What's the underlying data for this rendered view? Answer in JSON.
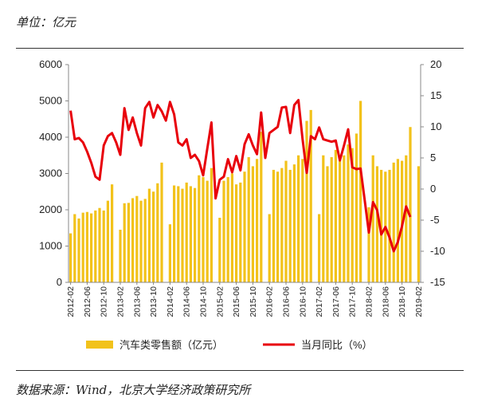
{
  "unit_label": "单位：亿元",
  "source_label": "数据来源：Wind，北京大学经济政策研究所",
  "colors": {
    "bar": "#f2c21b",
    "line": "#e8000b",
    "axis": "#888888",
    "text": "#222222"
  },
  "chart_data": {
    "type": "bar+line",
    "x_tick_labels": [
      "2012-02",
      "2012-06",
      "2012-10",
      "2013-02",
      "2013-06",
      "2013-10",
      "2014-02",
      "2014-06",
      "2014-10",
      "2015-02",
      "2015-06",
      "2015-10",
      "2016-02",
      "2016-06",
      "2016-10",
      "2017-02",
      "2017-06",
      "2017-10",
      "2018-02",
      "2018-06",
      "2018-10",
      "2019-02"
    ],
    "y_left": {
      "min": 0,
      "max": 6000,
      "ticks": [
        0,
        1000,
        2000,
        3000,
        4000,
        5000,
        6000
      ]
    },
    "y_right": {
      "min": -15,
      "max": 20,
      "ticks": [
        -15,
        -10,
        -5,
        0,
        5,
        10,
        15,
        20
      ]
    },
    "series": [
      {
        "name": "汽车类零售额（亿元）",
        "type": "bar",
        "axis": "left",
        "values": [
          1350,
          1880,
          1760,
          1920,
          1940,
          1900,
          1980,
          2050,
          1980,
          2250,
          2700,
          null,
          1450,
          2180,
          2190,
          2320,
          2380,
          2250,
          2300,
          2580,
          2500,
          2730,
          3300,
          null,
          1600,
          2670,
          2650,
          2580,
          2750,
          2650,
          2600,
          2950,
          2900,
          2800,
          3150,
          null,
          1780,
          2800,
          2900,
          3000,
          2700,
          2750,
          3050,
          3450,
          3200,
          3400,
          4150,
          null,
          1880,
          3100,
          3050,
          3150,
          3350,
          3100,
          3250,
          3500,
          3400,
          4450,
          4750,
          null,
          1880,
          3500,
          3200,
          3450,
          3650,
          3400,
          3500,
          3800,
          3700,
          4100,
          5000,
          null,
          2070,
          3500,
          3200,
          3100,
          3050,
          3100,
          3300,
          3400,
          3350,
          3500,
          4280,
          null,
          3200
        ]
      },
      {
        "name": "当月同比（%）",
        "type": "line",
        "axis": "right",
        "values": [
          12.6,
          8.0,
          8.2,
          7.5,
          6.0,
          4.2,
          2.0,
          1.5,
          7.0,
          8.5,
          9.0,
          7.5,
          5.5,
          13.0,
          9.5,
          11.5,
          9.0,
          7.0,
          13.0,
          14.0,
          11.5,
          13.5,
          12.5,
          11.0,
          14.0,
          12.0,
          7.5,
          7.0,
          8.0,
          5.0,
          5.5,
          4.5,
          2.2,
          6.5,
          10.7,
          -1.5,
          1.5,
          2.0,
          4.8,
          2.7,
          5.3,
          3.0,
          7.2,
          8.8,
          7.0,
          5.6,
          12.3,
          5.0,
          9.0,
          9.5,
          10.0,
          13.1,
          13.2,
          9.0,
          13.5,
          14.3,
          8.0,
          2.6,
          8.5,
          8.0,
          9.9,
          8.0,
          7.8,
          7.6,
          7.8,
          4.6,
          7.0,
          9.6,
          3.5,
          3.2,
          3.3,
          -1.8,
          -7.0,
          -2.1,
          -3.4,
          -7.3,
          -6.1,
          -7.8,
          -10.0,
          -8.5,
          -6.0,
          -2.8,
          -4.5
        ]
      }
    ],
    "legend_position": "bottom",
    "grid": false
  }
}
